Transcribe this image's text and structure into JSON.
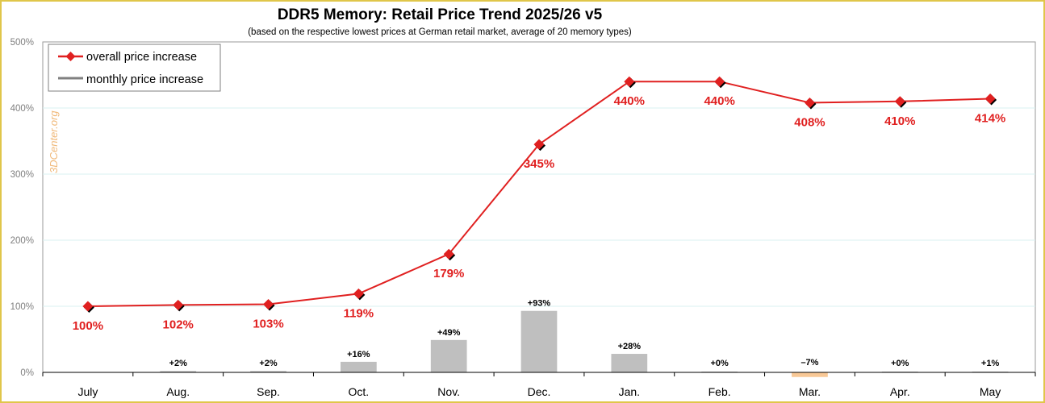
{
  "chart_data": {
    "type": "line",
    "title": "DDR5 Memory: Retail Price Trend 2025/26 v5",
    "subtitle": "(based on the respective lowest prices at German retail market, average of 20 memory types)",
    "watermark": "3DCenter.org",
    "categories": [
      "July",
      "Aug.",
      "Sep.",
      "Oct.",
      "Nov.",
      "Dec.",
      "Jan.",
      "Feb.",
      "Mar.",
      "Apr.",
      "May"
    ],
    "y_ticks": [
      "0%",
      "100%",
      "200%",
      "300%",
      "400%",
      "500%"
    ],
    "ylim": [
      0,
      500
    ],
    "grid": true,
    "legend_position": "top-left",
    "series": [
      {
        "name": "overall price increase",
        "type": "line",
        "color": "#e02020",
        "values": [
          100,
          102,
          103,
          119,
          179,
          345,
          440,
          440,
          408,
          410,
          414
        ],
        "labels": [
          "100%",
          "102%",
          "103%",
          "119%",
          "179%",
          "345%",
          "440%",
          "440%",
          "408%",
          "410%",
          "414%"
        ]
      },
      {
        "name": "monthly price increase",
        "type": "bar",
        "color": "#bfbfbf",
        "negative_color": "#f8c896",
        "values": [
          null,
          2,
          2,
          16,
          49,
          93,
          28,
          0,
          -7,
          0,
          1
        ],
        "labels": [
          "",
          "+2%",
          "+2%",
          "+16%",
          "+49%",
          "+93%",
          "+28%",
          "+0%",
          "–7%",
          "+0%",
          "+1%"
        ]
      }
    ]
  }
}
